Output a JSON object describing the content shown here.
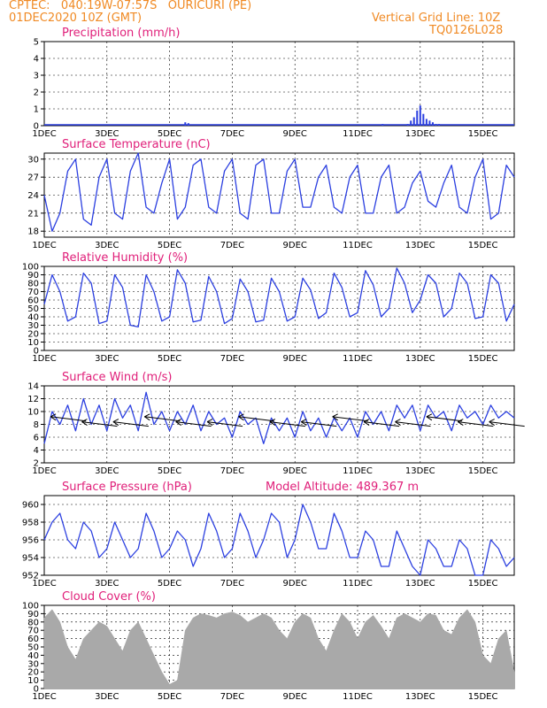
{
  "header": {
    "line1": "CPTEC:   040:19W-07:57S   OURICURI (PE)",
    "line2": "01DEC2020 10Z (GMT)",
    "right1": "Vertical Grid Line: 10Z",
    "right2": "TQ0126L028"
  },
  "colors": {
    "header": "#f08a24",
    "title": "#e0207a",
    "line": "#2b3fe0",
    "cloud": "#a9a9a9"
  },
  "x_ticks": [
    "1DEC",
    "3DEC",
    "5DEC",
    "7DEC",
    "9DEC",
    "11DEC",
    "13DEC",
    "15DEC"
  ],
  "chart_data": [
    {
      "type": "bar",
      "title": "Precipitation (mm/h)",
      "ylim": [
        0,
        5
      ],
      "yticks": [
        "0",
        "1",
        "2",
        "3",
        "4",
        "5"
      ],
      "x": [
        4.5,
        4.6,
        10.8,
        11.6,
        11.7,
        11.8,
        11.9,
        12.0,
        12.1,
        12.2,
        12.3,
        12.4,
        12.5,
        12.6
      ],
      "values": [
        0.2,
        0.15,
        0.1,
        0.1,
        0.3,
        0.5,
        0.9,
        1.2,
        0.7,
        0.4,
        0.3,
        0.2,
        0.1,
        0.1
      ]
    },
    {
      "type": "line",
      "title": "Surface Temperature (nC)",
      "ylim": [
        17,
        31
      ],
      "yticks": [
        "18",
        "21",
        "24",
        "27",
        "30"
      ],
      "x": [
        0,
        0.25,
        0.5,
        0.75,
        1,
        1.25,
        1.5,
        1.75,
        2,
        2.25,
        2.5,
        2.75,
        3,
        3.25,
        3.5,
        3.75,
        4,
        4.25,
        4.5,
        4.75,
        5,
        5.25,
        5.5,
        5.75,
        6,
        6.25,
        6.5,
        6.75,
        7,
        7.25,
        7.5,
        7.75,
        8,
        8.25,
        8.5,
        8.75,
        9,
        9.25,
        9.5,
        9.75,
        10,
        10.25,
        10.5,
        10.75,
        11,
        11.25,
        11.5,
        11.75,
        12,
        12.25,
        12.5,
        12.75,
        13,
        13.25,
        13.5,
        13.75,
        14,
        14.25,
        14.5,
        14.75,
        15
      ],
      "values": [
        24,
        18,
        21,
        28,
        30,
        20,
        19,
        27,
        30,
        21,
        20,
        28,
        31,
        22,
        21,
        26,
        30,
        20,
        22,
        29,
        30,
        22,
        21,
        28,
        30,
        21,
        20,
        29,
        30,
        21,
        21,
        28,
        30,
        22,
        22,
        27,
        29,
        22,
        21,
        27,
        29,
        21,
        21,
        27,
        29,
        21,
        22,
        26,
        28,
        23,
        22,
        26,
        29,
        22,
        21,
        27,
        30,
        20,
        21,
        29,
        27
      ]
    },
    {
      "type": "line",
      "title": "Relative Humidity (%)",
      "ylim": [
        0,
        100
      ],
      "yticks": [
        "0",
        "10",
        "20",
        "30",
        "40",
        "50",
        "60",
        "70",
        "80",
        "90",
        "100"
      ],
      "x": [
        0,
        0.25,
        0.5,
        0.75,
        1,
        1.25,
        1.5,
        1.75,
        2,
        2.25,
        2.5,
        2.75,
        3,
        3.25,
        3.5,
        3.75,
        4,
        4.25,
        4.5,
        4.75,
        5,
        5.25,
        5.5,
        5.75,
        6,
        6.25,
        6.5,
        6.75,
        7,
        7.25,
        7.5,
        7.75,
        8,
        8.25,
        8.5,
        8.75,
        9,
        9.25,
        9.5,
        9.75,
        10,
        10.25,
        10.5,
        10.75,
        11,
        11.25,
        11.5,
        11.75,
        12,
        12.25,
        12.5,
        12.75,
        13,
        13.25,
        13.5,
        13.75,
        14,
        14.25,
        14.5,
        14.75,
        15
      ],
      "values": [
        55,
        90,
        70,
        35,
        40,
        92,
        80,
        32,
        35,
        90,
        75,
        30,
        28,
        90,
        70,
        35,
        40,
        96,
        80,
        34,
        36,
        88,
        70,
        32,
        38,
        85,
        70,
        34,
        36,
        86,
        70,
        35,
        40,
        86,
        72,
        38,
        45,
        92,
        75,
        40,
        45,
        95,
        78,
        40,
        50,
        98,
        80,
        45,
        60,
        90,
        80,
        40,
        50,
        92,
        80,
        38,
        40,
        90,
        80,
        35,
        55
      ]
    },
    {
      "type": "line",
      "title": "Surface Wind (m/s)",
      "ylim": [
        2,
        14
      ],
      "yticks": [
        "2",
        "4",
        "6",
        "8",
        "10",
        "12",
        "14"
      ],
      "x": [
        0,
        0.25,
        0.5,
        0.75,
        1,
        1.25,
        1.5,
        1.75,
        2,
        2.25,
        2.5,
        2.75,
        3,
        3.25,
        3.5,
        3.75,
        4,
        4.25,
        4.5,
        4.75,
        5,
        5.25,
        5.5,
        5.75,
        6,
        6.25,
        6.5,
        6.75,
        7,
        7.25,
        7.5,
        7.75,
        8,
        8.25,
        8.5,
        8.75,
        9,
        9.25,
        9.5,
        9.75,
        10,
        10.25,
        10.5,
        10.75,
        11,
        11.25,
        11.5,
        11.75,
        12,
        12.25,
        12.5,
        12.75,
        13,
        13.25,
        13.5,
        13.75,
        14,
        14.25,
        14.5,
        14.75,
        15
      ],
      "values": [
        5,
        10,
        8,
        11,
        7,
        12,
        8,
        11,
        7,
        12,
        9,
        11,
        7,
        13,
        8,
        10,
        7,
        10,
        8,
        11,
        7,
        10,
        8,
        9,
        6,
        10,
        8,
        9,
        5,
        9,
        7,
        9,
        6,
        10,
        7,
        9,
        6,
        9,
        7,
        9,
        6,
        10,
        8,
        10,
        7,
        11,
        9,
        11,
        7,
        11,
        9,
        10,
        7,
        11,
        9,
        10,
        8,
        11,
        9,
        10,
        9
      ]
    },
    {
      "type": "line",
      "title": "Surface Pressure (hPa)",
      "annotation": "Model Altitude: 489.367 m",
      "ylim": [
        952,
        961
      ],
      "yticks": [
        "952",
        "954",
        "956",
        "958",
        "960"
      ],
      "x": [
        0,
        0.25,
        0.5,
        0.75,
        1,
        1.25,
        1.5,
        1.75,
        2,
        2.25,
        2.5,
        2.75,
        3,
        3.25,
        3.5,
        3.75,
        4,
        4.25,
        4.5,
        4.75,
        5,
        5.25,
        5.5,
        5.75,
        6,
        6.25,
        6.5,
        6.75,
        7,
        7.25,
        7.5,
        7.75,
        8,
        8.25,
        8.5,
        8.75,
        9,
        9.25,
        9.5,
        9.75,
        10,
        10.25,
        10.5,
        10.75,
        11,
        11.25,
        11.5,
        11.75,
        12,
        12.25,
        12.5,
        12.75,
        13,
        13.25,
        13.5,
        13.75,
        14,
        14.25,
        14.5,
        14.75,
        15
      ],
      "values": [
        956,
        958,
        959,
        956,
        955,
        958,
        957,
        954,
        955,
        958,
        956,
        954,
        955,
        959,
        957,
        954,
        955,
        957,
        956,
        953,
        955,
        959,
        957,
        954,
        955,
        959,
        957,
        954,
        956,
        959,
        958,
        954,
        956,
        960,
        958,
        955,
        955,
        959,
        957,
        954,
        954,
        957,
        956,
        953,
        953,
        957,
        955,
        953,
        952,
        956,
        955,
        953,
        953,
        956,
        955,
        952,
        952,
        956,
        955,
        953,
        954
      ]
    },
    {
      "type": "area",
      "title": "Cloud Cover (%)",
      "ylim": [
        0,
        100
      ],
      "yticks": [
        "0",
        "10",
        "20",
        "30",
        "40",
        "50",
        "60",
        "70",
        "80",
        "90",
        "100"
      ],
      "x": [
        0,
        0.25,
        0.5,
        0.75,
        1,
        1.25,
        1.5,
        1.75,
        2,
        2.25,
        2.5,
        2.75,
        3,
        3.25,
        3.5,
        3.75,
        4,
        4.25,
        4.5,
        4.75,
        5,
        5.25,
        5.5,
        5.75,
        6,
        6.25,
        6.5,
        6.75,
        7,
        7.25,
        7.5,
        7.75,
        8,
        8.25,
        8.5,
        8.75,
        9,
        9.25,
        9.5,
        9.75,
        10,
        10.25,
        10.5,
        10.75,
        11,
        11.25,
        11.5,
        11.75,
        12,
        12.25,
        12.5,
        12.75,
        13,
        13.25,
        13.5,
        13.75,
        14,
        14.25,
        14.5,
        14.75,
        15
      ],
      "values": [
        85,
        95,
        80,
        50,
        35,
        60,
        70,
        80,
        75,
        60,
        45,
        70,
        80,
        60,
        40,
        20,
        5,
        10,
        70,
        85,
        90,
        88,
        85,
        90,
        92,
        88,
        80,
        85,
        90,
        85,
        70,
        60,
        80,
        90,
        85,
        60,
        45,
        70,
        90,
        80,
        60,
        80,
        88,
        75,
        60,
        85,
        90,
        85,
        80,
        90,
        88,
        70,
        65,
        85,
        95,
        80,
        40,
        30,
        60,
        70,
        20
      ]
    }
  ]
}
